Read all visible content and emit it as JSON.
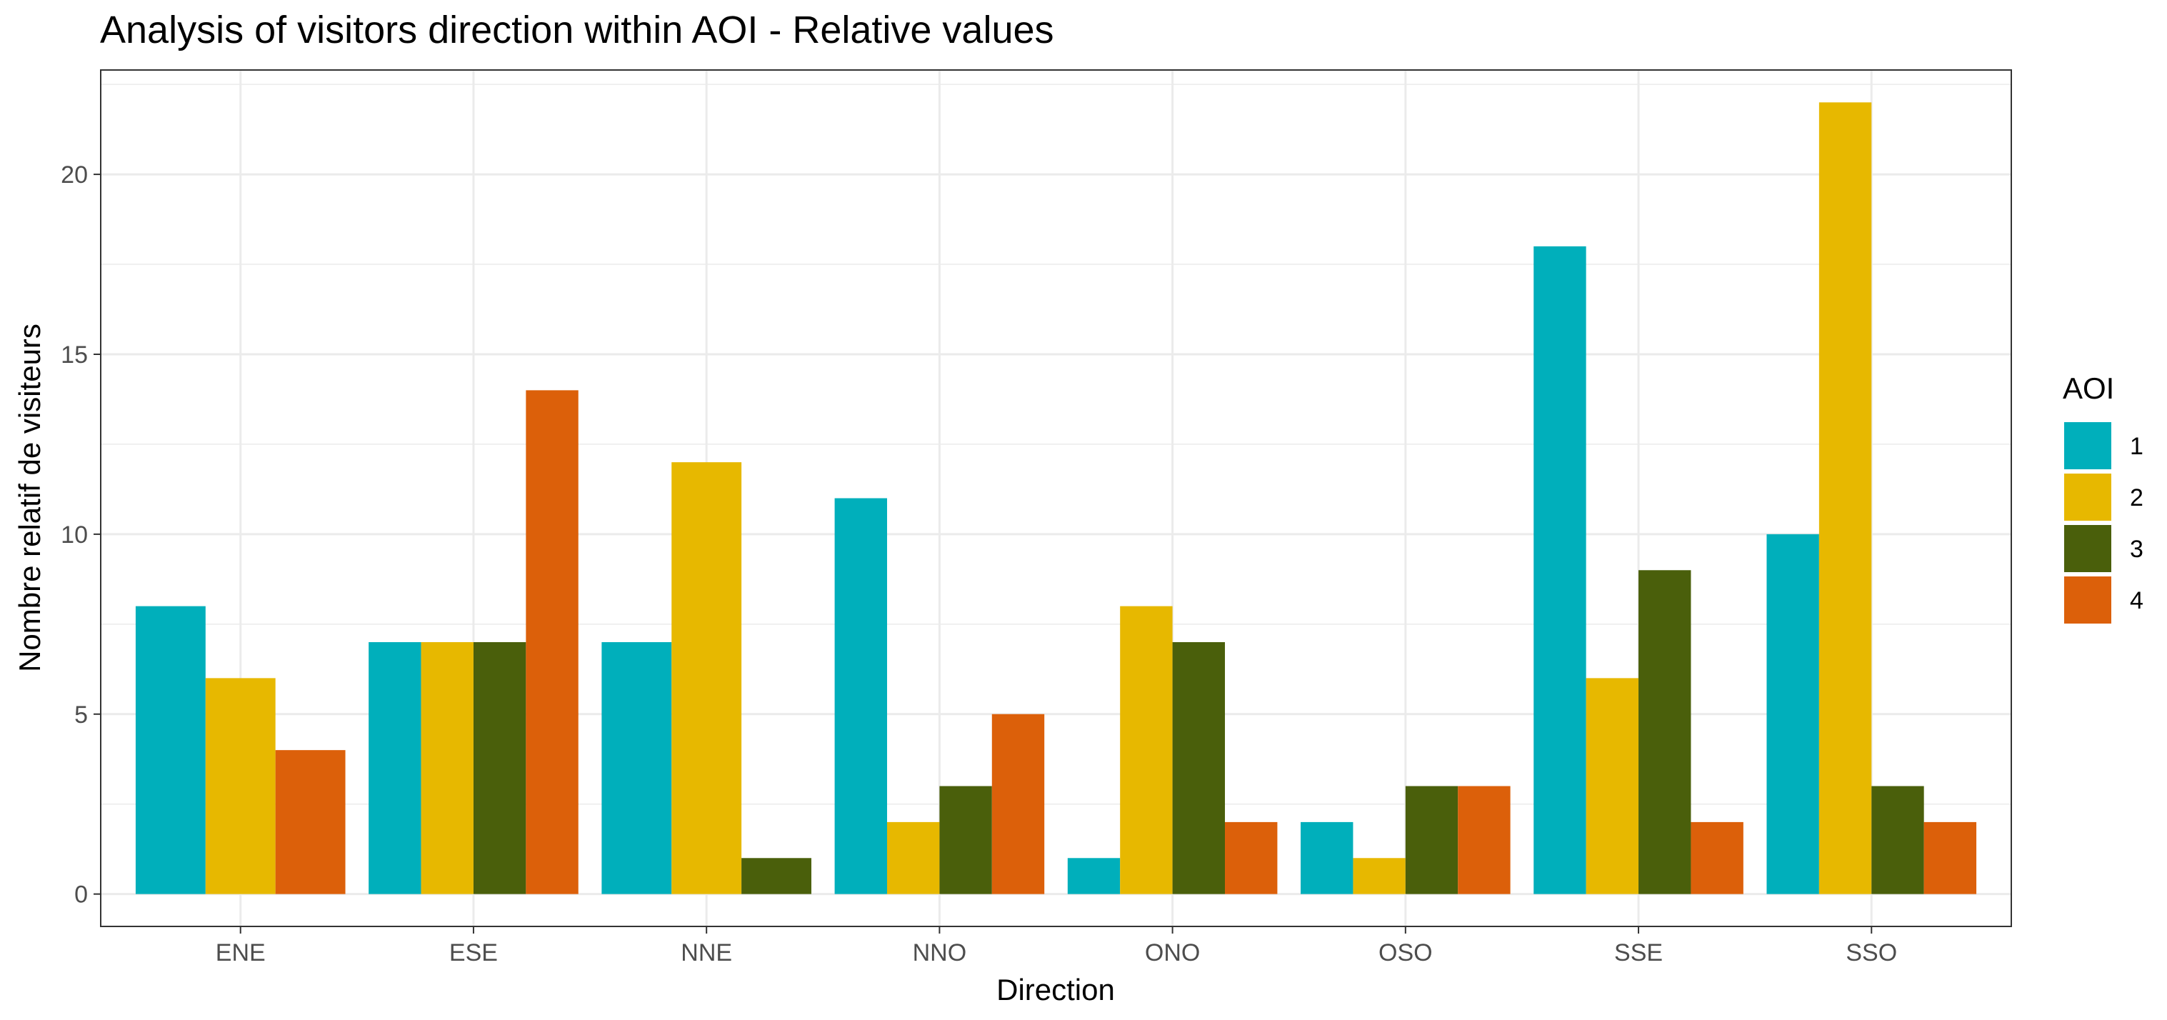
{
  "chart_data": {
    "type": "bar",
    "title": "Analysis of visitors direction within AOI - Relative values",
    "xlabel": "Direction",
    "ylabel": "Nombre relatif de visiteurs",
    "categories": [
      "ENE",
      "ESE",
      "NNE",
      "NNO",
      "ONO",
      "OSO",
      "SSE",
      "SSO"
    ],
    "ylim": [
      -0.9,
      22.9
    ],
    "yticks": [
      0,
      5,
      10,
      15,
      20
    ],
    "grid": true,
    "legend": {
      "title": "AOI",
      "position": "right"
    },
    "series": [
      {
        "name": "1",
        "color": "#00afbb",
        "values": [
          8,
          7,
          7,
          11,
          1,
          2,
          18,
          10
        ]
      },
      {
        "name": "2",
        "color": "#e7b800",
        "values": [
          6,
          7,
          12,
          2,
          8,
          1,
          6,
          22
        ]
      },
      {
        "name": "3",
        "color": "#4a5f0b",
        "values": [
          null,
          7,
          1,
          3,
          7,
          3,
          9,
          3
        ]
      },
      {
        "name": "4",
        "color": "#dc600a",
        "values": [
          4,
          14,
          null,
          5,
          2,
          3,
          2,
          2
        ]
      }
    ]
  }
}
